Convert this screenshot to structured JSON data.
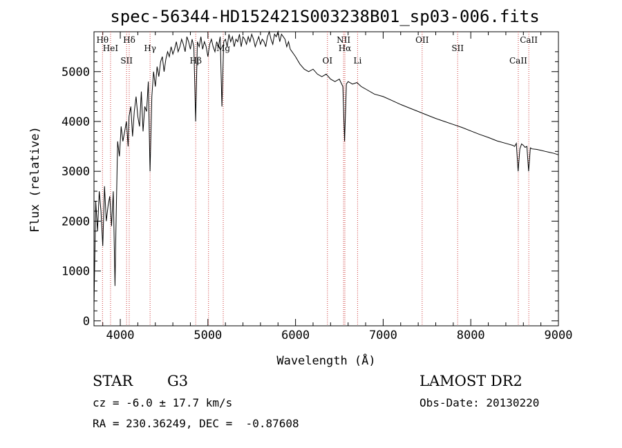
{
  "chart_data": {
    "type": "line",
    "title": "spec-56344-HD152421S003238B01_sp03-006.fits",
    "xlabel": "Wavelength (Å)",
    "ylabel": "Flux (relative)",
    "xlim": [
      3700,
      9000
    ],
    "ylim": [
      -100,
      5800
    ],
    "xticks": [
      4000,
      5000,
      6000,
      7000,
      8000,
      9000
    ],
    "yticks": [
      0,
      1000,
      2000,
      3000,
      4000,
      5000
    ],
    "grid": false,
    "series": [
      {
        "color": "#000000",
        "x": [
          3700,
          3720,
          3740,
          3760,
          3780,
          3800,
          3820,
          3840,
          3860,
          3880,
          3900,
          3920,
          3940,
          3950,
          3970,
          3990,
          4010,
          4030,
          4050,
          4070,
          4090,
          4100,
          4120,
          4140,
          4160,
          4180,
          4200,
          4220,
          4240,
          4260,
          4280,
          4300,
          4320,
          4340,
          4360,
          4380,
          4400,
          4420,
          4440,
          4460,
          4480,
          4500,
          4520,
          4540,
          4560,
          4580,
          4600,
          4620,
          4640,
          4660,
          4680,
          4700,
          4720,
          4740,
          4760,
          4780,
          4800,
          4820,
          4840,
          4860,
          4880,
          4900,
          4920,
          4940,
          4960,
          4980,
          5000,
          5020,
          5040,
          5060,
          5080,
          5100,
          5120,
          5140,
          5160,
          5180,
          5200,
          5220,
          5240,
          5260,
          5280,
          5300,
          5320,
          5340,
          5360,
          5380,
          5400,
          5420,
          5440,
          5460,
          5480,
          5500,
          5520,
          5540,
          5560,
          5580,
          5600,
          5620,
          5640,
          5660,
          5680,
          5700,
          5720,
          5740,
          5760,
          5780,
          5800,
          5820,
          5840,
          5860,
          5880,
          5900,
          5920,
          5940,
          5960,
          5980,
          6000,
          6050,
          6100,
          6150,
          6200,
          6250,
          6300,
          6350,
          6400,
          6450,
          6500,
          6540,
          6560,
          6580,
          6600,
          6650,
          6700,
          6750,
          6800,
          6900,
          7000,
          7100,
          7200,
          7300,
          7400,
          7500,
          7600,
          7700,
          7800,
          7900,
          8000,
          8100,
          8200,
          8300,
          8400,
          8480,
          8500,
          8520,
          8540,
          8560,
          8580,
          8600,
          8620,
          8640,
          8660,
          8680,
          8700,
          8750,
          8800,
          8850,
          8900,
          8950,
          9000
        ],
        "y": [
          300,
          2400,
          1800,
          2600,
          2200,
          1500,
          2700,
          2000,
          2300,
          2500,
          1900,
          2600,
          700,
          1800,
          3600,
          3300,
          3900,
          3600,
          3800,
          4000,
          3500,
          4100,
          4300,
          3700,
          4200,
          4500,
          4100,
          3900,
          4600,
          3800,
          4300,
          4200,
          4800,
          3000,
          4500,
          5000,
          4700,
          5100,
          4900,
          5200,
          5300,
          5000,
          5250,
          5400,
          5300,
          5500,
          5350,
          5450,
          5600,
          5400,
          5500,
          5650,
          5550,
          5400,
          5700,
          5600,
          5450,
          5650,
          5500,
          4000,
          5600,
          5500,
          5700,
          5450,
          5600,
          5500,
          5300,
          5550,
          5650,
          5500,
          5400,
          5600,
          5500,
          5700,
          4300,
          5600,
          5650,
          5500,
          5750,
          5600,
          5700,
          5500,
          5650,
          5600,
          5750,
          5500,
          5700,
          5650,
          5550,
          5700,
          5600,
          5750,
          5650,
          5500,
          5600,
          5700,
          5550,
          5650,
          5600,
          5500,
          5700,
          5800,
          5650,
          5550,
          5750,
          5700,
          5800,
          5600,
          5750,
          5700,
          5650,
          5500,
          5600,
          5450,
          5400,
          5350,
          5300,
          5150,
          5050,
          5000,
          5050,
          4950,
          4900,
          4950,
          4850,
          4800,
          4850,
          4700,
          3600,
          4750,
          4800,
          4750,
          4780,
          4700,
          4650,
          4550,
          4500,
          4420,
          4340,
          4270,
          4200,
          4130,
          4060,
          4000,
          3940,
          3880,
          3810,
          3740,
          3680,
          3610,
          3560,
          3520,
          3500,
          3560,
          3000,
          3450,
          3550,
          3520,
          3480,
          3500,
          3000,
          3470,
          3450,
          3440,
          3420,
          3400,
          3380,
          3360,
          3330
        ]
      }
    ],
    "vlines": [
      {
        "x": 3797,
        "label": "Hθ",
        "color": "#cc3333"
      },
      {
        "x": 3889,
        "label": "HeI",
        "color": "#cc3333"
      },
      {
        "x": 4072,
        "label": "SII",
        "color": "#cc3333"
      },
      {
        "x": 4102,
        "label": "Hδ",
        "color": "#cc3333"
      },
      {
        "x": 4340,
        "label": "Hγ",
        "color": "#cc3333"
      },
      {
        "x": 4861,
        "label": "Hβ",
        "color": "#cc3333"
      },
      {
        "x": 5007,
        "label": "",
        "color": "#cc3333"
      },
      {
        "x": 5175,
        "label": "Mg",
        "color": "#cc3333"
      },
      {
        "x": 6364,
        "label": "OI",
        "color": "#cc3333"
      },
      {
        "x": 6548,
        "label": "NII",
        "color": "#cc3333"
      },
      {
        "x": 6563,
        "label": "Hα",
        "color": "#cc3333"
      },
      {
        "x": 6708,
        "label": "Li",
        "color": "#cc3333"
      },
      {
        "x": 7445,
        "label": "OII",
        "color": "#cc3333"
      },
      {
        "x": 7850,
        "label": "SII",
        "color": "#cc3333"
      },
      {
        "x": 8542,
        "label": "CaII",
        "color": "#cc3333"
      },
      {
        "x": 8662,
        "label": "CaII",
        "color": "#cc3333"
      }
    ]
  },
  "info": {
    "class_label": "STAR",
    "subclass": "G3",
    "survey": "LAMOST DR2",
    "cz": "cz = -6.0 ± 17.7 km/s",
    "obs_date": "Obs-Date: 20130220",
    "radec": "RA = 230.36249, DEC =  -0.87608"
  }
}
